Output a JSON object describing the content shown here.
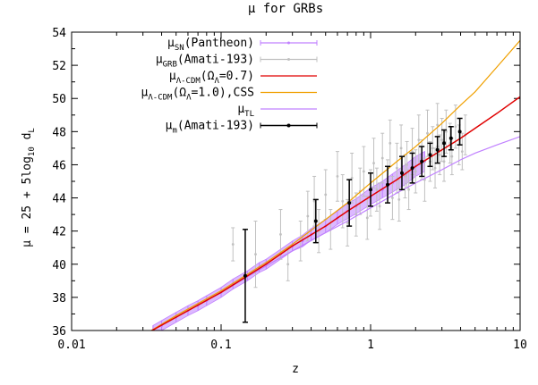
{
  "chart_data": {
    "type": "scatter",
    "title": "μ for GRBs",
    "xlabel": "z",
    "ylabel": "μ = 25 + 5log10 dL",
    "x_scale": "log",
    "xlim": [
      0.01,
      10
    ],
    "ylim": [
      36,
      54
    ],
    "xticks": [
      {
        "value": 0.01,
        "label": "0.01"
      },
      {
        "value": 0.1,
        "label": "0.1"
      },
      {
        "value": 1,
        "label": "1"
      },
      {
        "value": 10,
        "label": "10"
      }
    ],
    "yticks": [
      {
        "value": 36,
        "label": "36"
      },
      {
        "value": 38,
        "label": "38"
      },
      {
        "value": 40,
        "label": "40"
      },
      {
        "value": 42,
        "label": "42"
      },
      {
        "value": 44,
        "label": "44"
      },
      {
        "value": 46,
        "label": "46"
      },
      {
        "value": 48,
        "label": "48"
      },
      {
        "value": 50,
        "label": "50"
      },
      {
        "value": 52,
        "label": "52"
      },
      {
        "value": 54,
        "label": "54"
      }
    ],
    "grid": false,
    "legend_position": "top-left",
    "legend": [
      {
        "label": "μSN(Pantheon)",
        "series": "sn"
      },
      {
        "label": "μGRB(Amati-193)",
        "series": "grb"
      },
      {
        "label": "μΛ-CDM(ΩΛ=0.7)",
        "series": "lcdm"
      },
      {
        "label": "μΛ-CDM(ΩΛ=1.0),CSS",
        "series": "css"
      },
      {
        "label": "μTL",
        "series": "tl"
      },
      {
        "label": "μm(Amati-193)",
        "series": "binned"
      }
    ],
    "colors": {
      "sn": "#c080ff",
      "grb": "#c0c0c0",
      "lcdm": "#e00000",
      "css": "#f0a000",
      "tl": "#c080ff",
      "binned": "#000000"
    },
    "series": [
      {
        "name": "μΛ-CDM(ΩΛ=0.7)",
        "key": "lcdm",
        "kind": "line",
        "x": [
          0.03,
          0.05,
          0.1,
          0.2,
          0.3,
          0.5,
          0.7,
          1.0,
          1.5,
          2.0,
          3.0,
          4.0,
          5.0,
          7.0,
          10.0
        ],
        "y": [
          35.7,
          36.8,
          38.3,
          40.0,
          41.1,
          42.3,
          43.2,
          44.1,
          45.1,
          45.9,
          46.9,
          47.6,
          48.2,
          49.1,
          50.1
        ]
      },
      {
        "name": "μΛ-CDM(ΩΛ=1.0),CSS",
        "key": "css",
        "kind": "line",
        "x": [
          0.03,
          0.05,
          0.1,
          0.2,
          0.3,
          0.5,
          0.7,
          1.0,
          1.5,
          2.0,
          3.0,
          4.0,
          5.0,
          7.0,
          10.0
        ],
        "y": [
          35.7,
          36.9,
          38.4,
          40.1,
          41.2,
          42.7,
          43.7,
          44.9,
          46.2,
          47.1,
          48.5,
          49.6,
          50.4,
          51.9,
          53.5
        ]
      },
      {
        "name": "μTL",
        "key": "tl",
        "kind": "line",
        "x": [
          0.03,
          0.05,
          0.1,
          0.2,
          0.3,
          0.5,
          0.7,
          1.0,
          1.5,
          2.0,
          3.0,
          4.0,
          5.0,
          7.0,
          10.0
        ],
        "y": [
          35.7,
          36.8,
          38.3,
          39.9,
          40.8,
          41.9,
          42.6,
          43.4,
          44.3,
          44.9,
          45.7,
          46.3,
          46.7,
          47.2,
          47.7
        ]
      },
      {
        "name": "μm(Amati-193)",
        "key": "binned",
        "kind": "errorbar",
        "x": [
          0.145,
          0.43,
          0.72,
          1.0,
          1.3,
          1.62,
          1.9,
          2.2,
          2.5,
          2.8,
          3.1,
          3.45,
          3.95
        ],
        "y": [
          39.3,
          42.6,
          43.7,
          44.5,
          44.8,
          45.5,
          45.8,
          46.2,
          46.6,
          46.9,
          47.3,
          47.6,
          48.0
        ],
        "err": [
          2.8,
          1.3,
          1.4,
          1.0,
          1.1,
          1.0,
          0.9,
          0.9,
          0.7,
          0.8,
          0.8,
          0.7,
          0.8
        ]
      },
      {
        "name": "μGRB(Amati-193)",
        "key": "grb",
        "kind": "errorbar",
        "x": [
          0.12,
          0.17,
          0.25,
          0.28,
          0.34,
          0.38,
          0.42,
          0.45,
          0.5,
          0.54,
          0.6,
          0.65,
          0.7,
          0.75,
          0.8,
          0.85,
          0.9,
          0.95,
          1.0,
          1.05,
          1.1,
          1.15,
          1.2,
          1.3,
          1.35,
          1.4,
          1.5,
          1.55,
          1.6,
          1.7,
          1.75,
          1.8,
          1.9,
          2.0,
          2.1,
          2.2,
          2.3,
          2.4,
          2.5,
          2.6,
          2.7,
          2.8,
          2.9,
          3.0,
          3.1,
          3.2,
          3.4,
          3.5,
          3.7,
          3.9,
          4.1,
          4.3
        ],
        "y": [
          41.2,
          40.6,
          41.8,
          40.0,
          41.4,
          42.9,
          43.8,
          42.0,
          44.2,
          42.1,
          45.3,
          43.8,
          42.5,
          45.2,
          43.0,
          44.4,
          45.6,
          42.8,
          44.3,
          46.1,
          44.5,
          43.5,
          46.4,
          45.0,
          47.3,
          44.0,
          45.8,
          43.9,
          47.0,
          45.3,
          46.0,
          44.5,
          46.8,
          45.6,
          47.5,
          46.3,
          45.1,
          47.9,
          46.2,
          47.0,
          45.8,
          48.4,
          46.6,
          47.5,
          46.2,
          48.0,
          47.3,
          46.5,
          48.3,
          47.2,
          46.8,
          47.8
        ],
        "err": [
          1.0,
          2.0,
          1.5,
          1.0,
          1.2,
          1.5,
          1.5,
          1.3,
          1.5,
          1.2,
          1.5,
          1.6,
          1.4,
          1.5,
          1.3,
          1.4,
          1.5,
          1.3,
          1.4,
          1.5,
          1.3,
          1.4,
          1.5,
          1.3,
          1.4,
          1.3,
          1.5,
          1.3,
          1.4,
          1.3,
          1.4,
          1.2,
          1.4,
          1.3,
          1.5,
          1.2,
          1.3,
          1.4,
          1.2,
          1.3,
          1.2,
          1.3,
          1.2,
          1.3,
          1.2,
          1.3,
          1.2,
          1.1,
          1.3,
          1.2,
          1.1,
          1.2
        ]
      },
      {
        "name": "μSN(Pantheon)",
        "key": "sn",
        "kind": "band",
        "x": [
          0.035,
          0.04,
          0.05,
          0.06,
          0.07,
          0.08,
          0.1,
          0.12,
          0.15,
          0.18,
          0.2,
          0.25,
          0.3,
          0.35,
          0.4,
          0.5,
          0.6,
          0.7,
          0.8,
          1.0,
          1.2,
          1.4,
          1.7,
          2.0,
          2.3
        ],
        "y": [
          36.0,
          36.3,
          36.8,
          37.2,
          37.5,
          37.8,
          38.3,
          38.8,
          39.3,
          39.8,
          40.0,
          40.6,
          41.1,
          41.4,
          41.8,
          42.3,
          42.8,
          43.2,
          43.5,
          44.1,
          44.5,
          44.9,
          45.4,
          45.9,
          46.2
        ],
        "err": [
          0.3,
          0.3,
          0.3,
          0.3,
          0.3,
          0.3,
          0.3,
          0.3,
          0.3,
          0.3,
          0.3,
          0.3,
          0.3,
          0.35,
          0.35,
          0.4,
          0.4,
          0.45,
          0.45,
          0.5,
          0.5,
          0.55,
          0.6,
          0.6,
          0.6
        ]
      }
    ]
  }
}
